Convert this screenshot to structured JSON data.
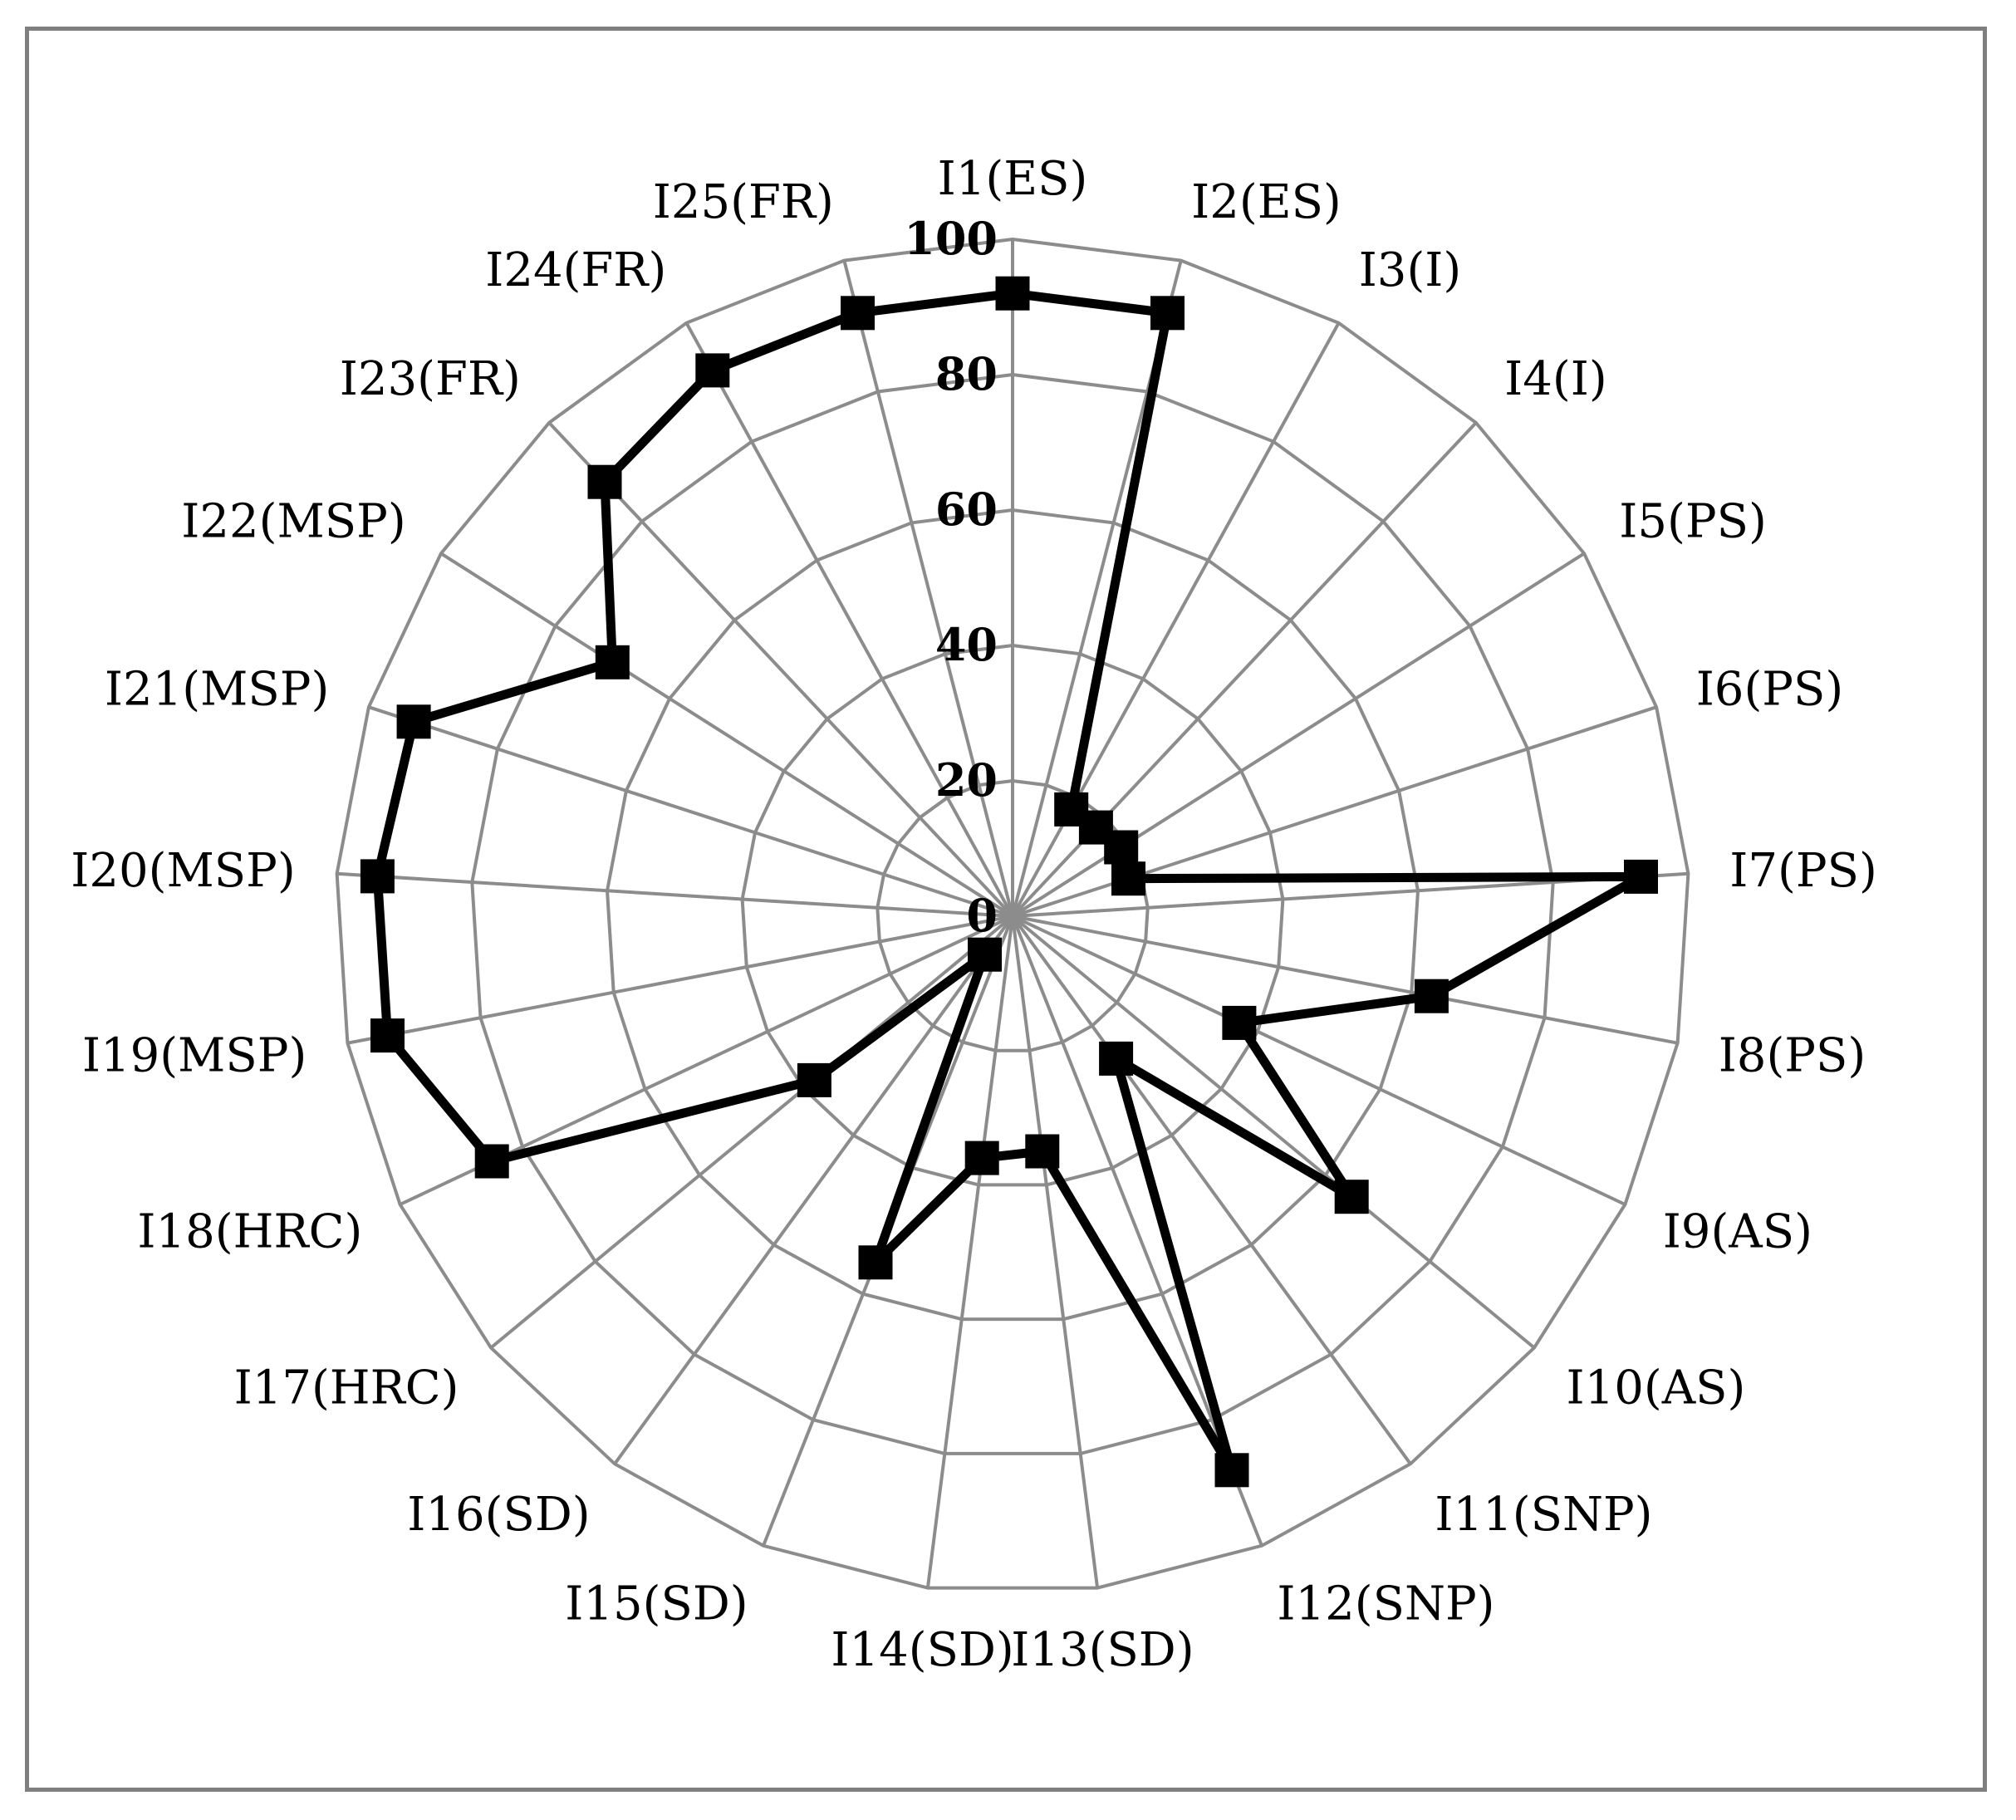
{
  "chart_data": {
    "type": "radar",
    "categories": [
      "I1(ES)",
      "I2(ES)",
      "I3(I)",
      "I4(I)",
      "I5(PS)",
      "I6(PS)",
      "I7(PS)",
      "I8(PS)",
      "I9(AS)",
      "I10(AS)",
      "I11(SNP)",
      "I12(SNP)",
      "I13(SD)",
      "I14(SD)",
      "I15(SD)",
      "I16(SD)",
      "I17(HRC)",
      "I18(HRC)",
      "I19(MSP)",
      "I20(MSP)",
      "I21(MSP)",
      "I22(MSP)",
      "I23(FR)",
      "I24(FR)",
      "I25(FR)"
    ],
    "series": [
      {
        "values": [
          92,
          92,
          18,
          18,
          19,
          18,
          93,
          63,
          37,
          65,
          26,
          88,
          35,
          36,
          55,
          7,
          38,
          85,
          94,
          94,
          93,
          70,
          88,
          92,
          92
        ]
      }
    ],
    "rlim": [
      0,
      100
    ],
    "ticks": [
      "0",
      "20",
      "40",
      "60",
      "80",
      "100"
    ],
    "tick_values": [
      0,
      20,
      40,
      60,
      80,
      100
    ],
    "grid": true,
    "legend": "none",
    "colors": {
      "line": "#000000",
      "marker": "#000000",
      "grid": "#8c8c8c",
      "frame": "#7f7f7f"
    }
  }
}
